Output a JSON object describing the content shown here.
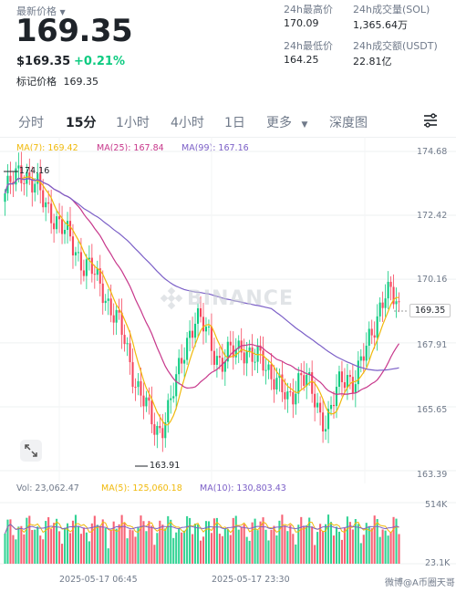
{
  "header": {
    "latest_price_label": "最新价格",
    "latest_price": "169.35",
    "usd_price": "$169.35",
    "change_pct": "+0.21%",
    "mark_price_label": "标记价格",
    "mark_price": "169.35"
  },
  "stats": {
    "high_label": "24h最高价",
    "high_value": "170.09",
    "low_label": "24h最低价",
    "low_value": "164.25",
    "vol_sol_label": "24h成交量(SOL)",
    "vol_sol_value": "1,365.64万",
    "vol_usdt_label": "24h成交额(USDT)",
    "vol_usdt_value": "22.81亿"
  },
  "tabs": [
    {
      "label": "分时",
      "active": false
    },
    {
      "label": "15分",
      "active": true
    },
    {
      "label": "1小时",
      "active": false
    },
    {
      "label": "4小时",
      "active": false
    },
    {
      "label": "1日",
      "active": false
    },
    {
      "label": "更多",
      "active": false
    },
    {
      "label": "深度图",
      "active": false
    }
  ],
  "ma_legend": {
    "ma7": "MA(7): 169.42",
    "ma25": "MA(25): 167.84",
    "ma99": "MA(99): 167.16"
  },
  "price_axis": [
    "174.68",
    "172.42",
    "170.16",
    "167.91",
    "165.65",
    "163.39"
  ],
  "current_price_tag": "169.35",
  "annotations": {
    "high": "174.16",
    "low": "163.91"
  },
  "watermark": "BINANCE",
  "volume": {
    "vol": "Vol: 23,062.47",
    "ma5": "MA(5): 125,060.18",
    "ma10": "MA(10): 130,803.43",
    "axis_top": "514K",
    "axis_bottom": "23.1K"
  },
  "dates": [
    "2025-05-17 06:45",
    "2025-05-17 23:30"
  ],
  "credit": "微博@A币圈天哥",
  "colors": {
    "up": "#0ecb81",
    "down": "#f6465d",
    "ma7": "#f0b90b",
    "ma25": "#c7378b",
    "ma99": "#7b5fc7",
    "accent_text": "#1e2329"
  },
  "chart_data": {
    "type": "candlestick",
    "interval": "15分",
    "ylim": [
      163.39,
      174.68
    ],
    "yticks": [
      174.68,
      172.42,
      170.16,
      167.91,
      165.65,
      163.39
    ],
    "annotated_high": 174.16,
    "annotated_low": 163.91,
    "last_price": 169.35,
    "close_path": [
      173.2,
      173.5,
      173.9,
      174.0,
      173.6,
      173.3,
      172.8,
      172.6,
      172.2,
      171.8,
      171.5,
      171.1,
      170.7,
      170.5,
      170.1,
      169.8,
      169.2,
      168.7,
      168.1,
      167.3,
      166.5,
      165.9,
      165.3,
      164.8,
      165.1,
      165.6,
      166.4,
      167.5,
      168.3,
      168.7,
      168.5,
      168.2,
      167.6,
      167.1,
      167.4,
      167.7,
      167.9,
      167.5,
      167.2,
      167.4,
      167.1,
      166.7,
      166.2,
      165.8,
      166.3,
      166.9,
      166.5,
      165.9,
      165.4,
      165.2,
      165.8,
      166.4,
      166.8,
      166.6,
      167.0,
      167.6,
      168.4,
      169.2,
      169.7,
      169.4,
      169.35
    ],
    "ma_final": {
      "MA(7)": 169.42,
      "MA(25)": 167.84,
      "MA(99)": 167.16
    },
    "volume_range": [
      "23.1K",
      "514K"
    ]
  }
}
